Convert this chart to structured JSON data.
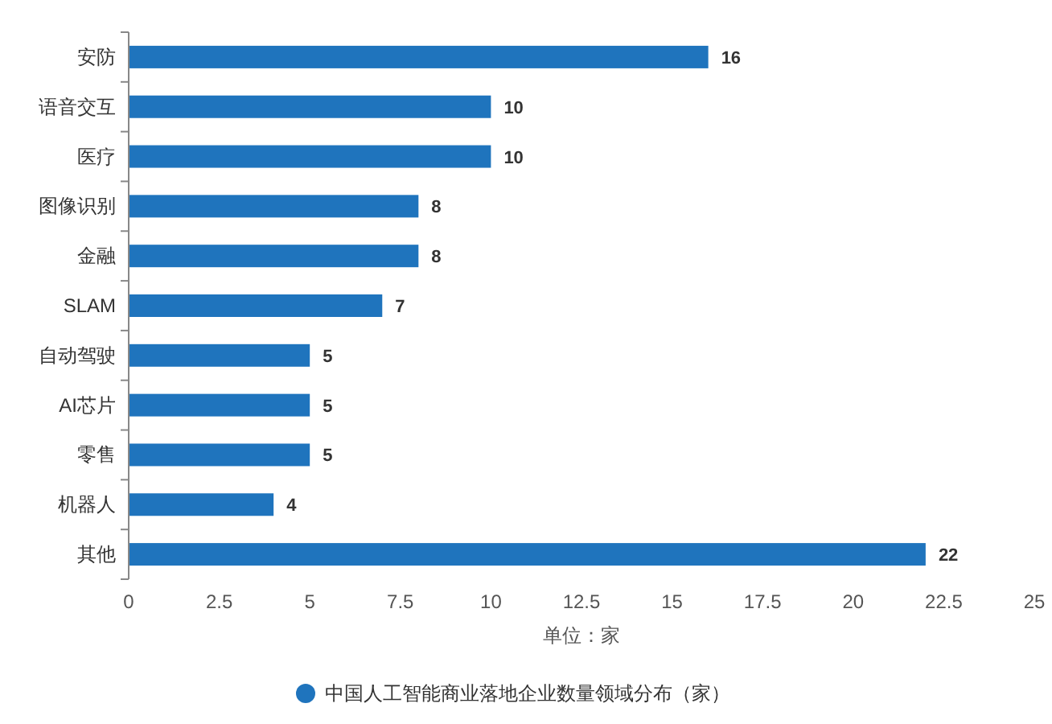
{
  "chart_data": {
    "type": "bar",
    "orientation": "horizontal",
    "xlabel": "单位：家",
    "categories": [
      "安防",
      "语音交互",
      "医疗",
      "图像识别",
      "金融",
      "SLAM",
      "自动驾驶",
      "AI芯片",
      "零售",
      "机器人",
      "其他"
    ],
    "series": [
      {
        "name": "中国人工智能商业落地企业数量领域分布（家）",
        "color": "#1f74bd",
        "values": [
          16,
          10,
          10,
          8,
          8,
          7,
          5,
          5,
          5,
          4,
          22
        ]
      }
    ],
    "xlim": [
      0,
      25
    ],
    "xticks": [
      0,
      2.5,
      5,
      7.5,
      10,
      12.5,
      15,
      17.5,
      20,
      22.5,
      25
    ],
    "data_labels": true,
    "legend": "bottom"
  }
}
